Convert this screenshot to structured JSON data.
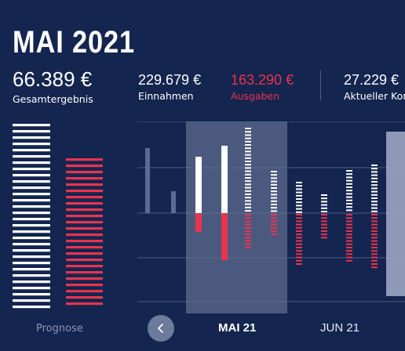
{
  "header": {
    "title": "MAI 2021"
  },
  "kpis": {
    "total": {
      "value": "66.389 €",
      "label": "Gesamtergebnis"
    },
    "income": {
      "value": "229.679 €",
      "label": "Einnahmen"
    },
    "expense": {
      "value": "163.290 €",
      "label": "Ausgaben"
    },
    "account": {
      "value": "27.229 €",
      "label": "Aktueller Kontostand"
    }
  },
  "forecast": {
    "label": "Prognose"
  },
  "nav": {
    "months": [
      "MAI 21",
      "JUN 21"
    ],
    "active_month": "MAI 21",
    "prev_icon": "chevron-left-icon"
  },
  "colors": {
    "background": "#14254f",
    "income": "#ffffff",
    "expense": "#e8344e",
    "selected_band": "#5d6b8f"
  }
}
